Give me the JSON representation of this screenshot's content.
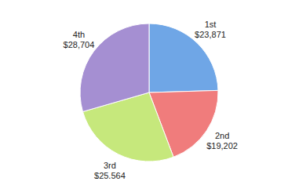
{
  "chart_data": {
    "type": "pie",
    "categories": [
      "1st",
      "2nd",
      "3rd",
      "4th"
    ],
    "values": [
      23871,
      19202,
      25564,
      28704
    ],
    "value_labels": [
      "$23,871",
      "$19,202",
      "$25,564",
      "$28,704"
    ],
    "colors": [
      "#6fa6e6",
      "#f07c7c",
      "#c6e87c",
      "#a58fd2"
    ],
    "data_labels": true
  }
}
